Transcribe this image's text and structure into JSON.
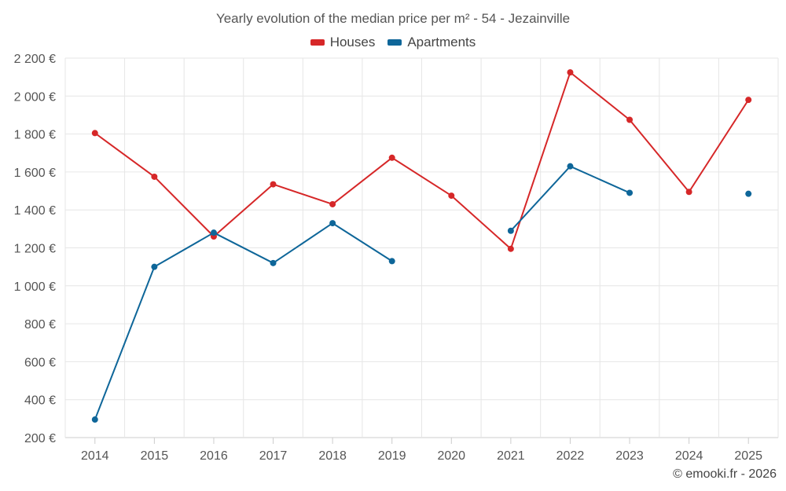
{
  "chart_data": {
    "type": "line",
    "title": "Yearly evolution of the median price per m² - 54 - Jezainville",
    "categories": [
      "2014",
      "2015",
      "2016",
      "2017",
      "2018",
      "2019",
      "2020",
      "2021",
      "2022",
      "2023",
      "2024",
      "2025"
    ],
    "series": [
      {
        "name": "Houses",
        "color": "#d62728",
        "values": [
          1805,
          1575,
          1260,
          1535,
          1430,
          1675,
          1475,
          1195,
          2125,
          1875,
          1495,
          1980
        ]
      },
      {
        "name": "Apartments",
        "color": "#0e6699",
        "values": [
          295,
          1100,
          1280,
          1120,
          1330,
          1130,
          null,
          1290,
          1630,
          1490,
          null,
          1485
        ]
      }
    ],
    "ylim": [
      200,
      2200
    ],
    "yticks": [
      200,
      400,
      600,
      800,
      1000,
      1200,
      1400,
      1600,
      1800,
      2000,
      2200
    ],
    "ytick_labels": [
      "200 €",
      "400 €",
      "600 €",
      "800 €",
      "1 000 €",
      "1 200 €",
      "1 400 €",
      "1 600 €",
      "1 800 €",
      "2 000 €",
      "2 200 €"
    ],
    "grid": true,
    "legend_position": "top-center"
  },
  "legend": {
    "houses": "Houses",
    "apartments": "Apartments"
  },
  "footer": "© emooki.fr - 2026"
}
